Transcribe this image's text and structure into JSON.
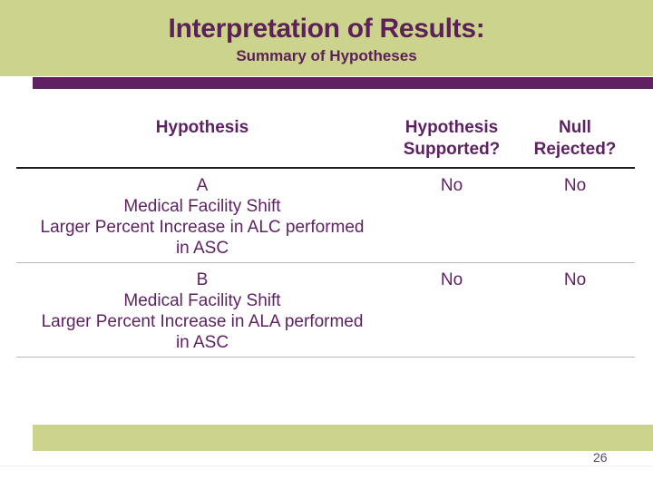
{
  "colors": {
    "band_green": "#ccd38c",
    "accent_purple": "#5f2161",
    "title_purple": "#5c2159",
    "table_text_purple": "#5e2263",
    "header_rule_dark": "#1c1c1c",
    "row_rule_gray": "#b8b4bc",
    "page_number_color": "#5a4763"
  },
  "header": {
    "title": "Interpretation of Results:",
    "subtitle": "Summary of Hypotheses"
  },
  "table": {
    "headers": [
      "Hypothesis",
      "Hypothesis\nSupported?",
      "Null\nRejected?"
    ],
    "rows": [
      {
        "hypothesis": "A\nMedical Facility Shift\nLarger Percent Increase in ALC performed\nin ASC",
        "supported": "No",
        "null_rejected": "No"
      },
      {
        "hypothesis": "B\nMedical Facility Shift\nLarger Percent Increase in ALA performed\nin ASC",
        "supported": "No",
        "null_rejected": "No"
      }
    ]
  },
  "footer": {
    "page_number": "26"
  }
}
